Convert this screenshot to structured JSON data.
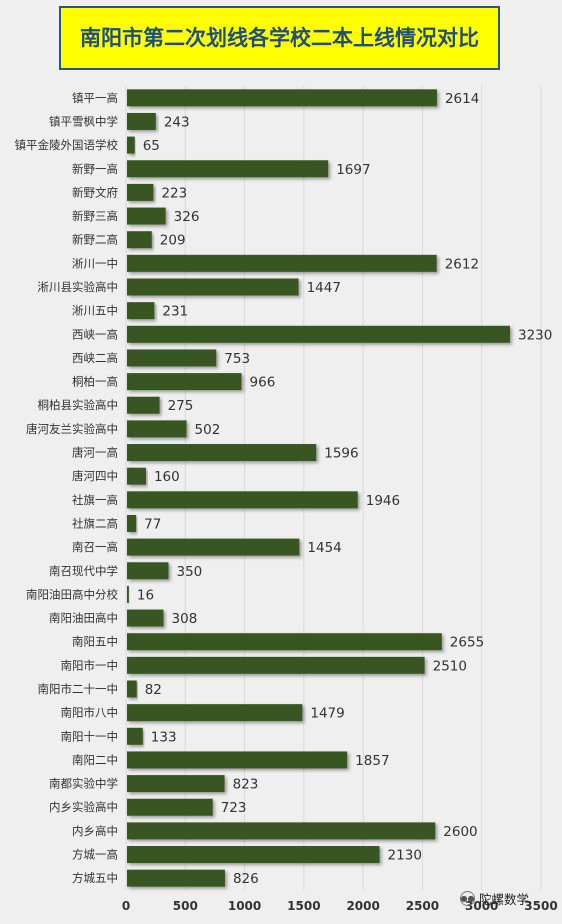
{
  "title": "南阳市第二次划线各学校二本上线情况对比",
  "watermark": "陀螺数学",
  "colors": {
    "bar": "#375623",
    "background": "#efefef",
    "title_bg": "#ffff00",
    "title_text": "#1f4e79",
    "grid": "#d9d9d9"
  },
  "chart_data": {
    "type": "bar",
    "orientation": "horizontal",
    "title": "南阳市第二次划线各学校二本上线情况对比",
    "xlim": [
      0,
      3500
    ],
    "xticks": [
      0,
      500,
      1000,
      1500,
      2000,
      2500,
      3000,
      3500
    ],
    "grid": true,
    "data_labels": true,
    "categories": [
      "镇平一高",
      "镇平雪枫中学",
      "镇平金陵外国语学校",
      "新野一高",
      "新野文府",
      "新野三高",
      "新野二高",
      "淅川一中",
      "淅川县实验高中",
      "淅川五中",
      "西峡一高",
      "西峡二高",
      "桐柏一高",
      "桐柏县实验高中",
      "唐河友兰实验高中",
      "唐河一高",
      "唐河四中",
      "社旗一高",
      "社旗二高",
      "南召一高",
      "南召现代中学",
      "南阳油田高中分校",
      "南阳油田高中",
      "南阳五中",
      "南阳市一中",
      "南阳市二十一中",
      "南阳市八中",
      "南阳十一中",
      "南阳二中",
      "南都实验中学",
      "内乡实验高中",
      "内乡高中",
      "方城一高",
      "方城五中"
    ],
    "values": [
      2614,
      243,
      65,
      1697,
      223,
      326,
      209,
      2612,
      1447,
      231,
      3230,
      753,
      966,
      275,
      502,
      1596,
      160,
      1946,
      77,
      1454,
      350,
      16,
      308,
      2655,
      2510,
      82,
      1479,
      133,
      1857,
      823,
      723,
      2600,
      2130,
      826
    ]
  }
}
